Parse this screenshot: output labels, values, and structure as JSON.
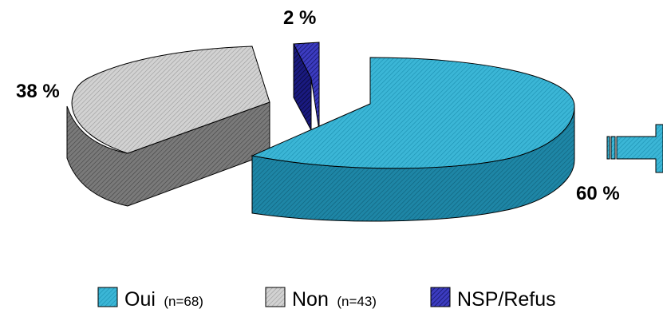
{
  "chart_data": {
    "type": "pie",
    "style": "3d-exploded",
    "slices": [
      {
        "label": "Oui",
        "count_label": "(n=68)",
        "value": 60,
        "value_label": "60 %",
        "color": "#2aa6c7"
      },
      {
        "label": "Non",
        "count_label": "(n=43)",
        "value": 38,
        "value_label": "38 %",
        "color": "#bdbdbd"
      },
      {
        "label": "NSP/Refus",
        "count_label": "",
        "value": 2,
        "value_label": "2 %",
        "color": "#1c1c8c"
      }
    ],
    "legend_position": "bottom",
    "annotation": "right-arrow"
  }
}
